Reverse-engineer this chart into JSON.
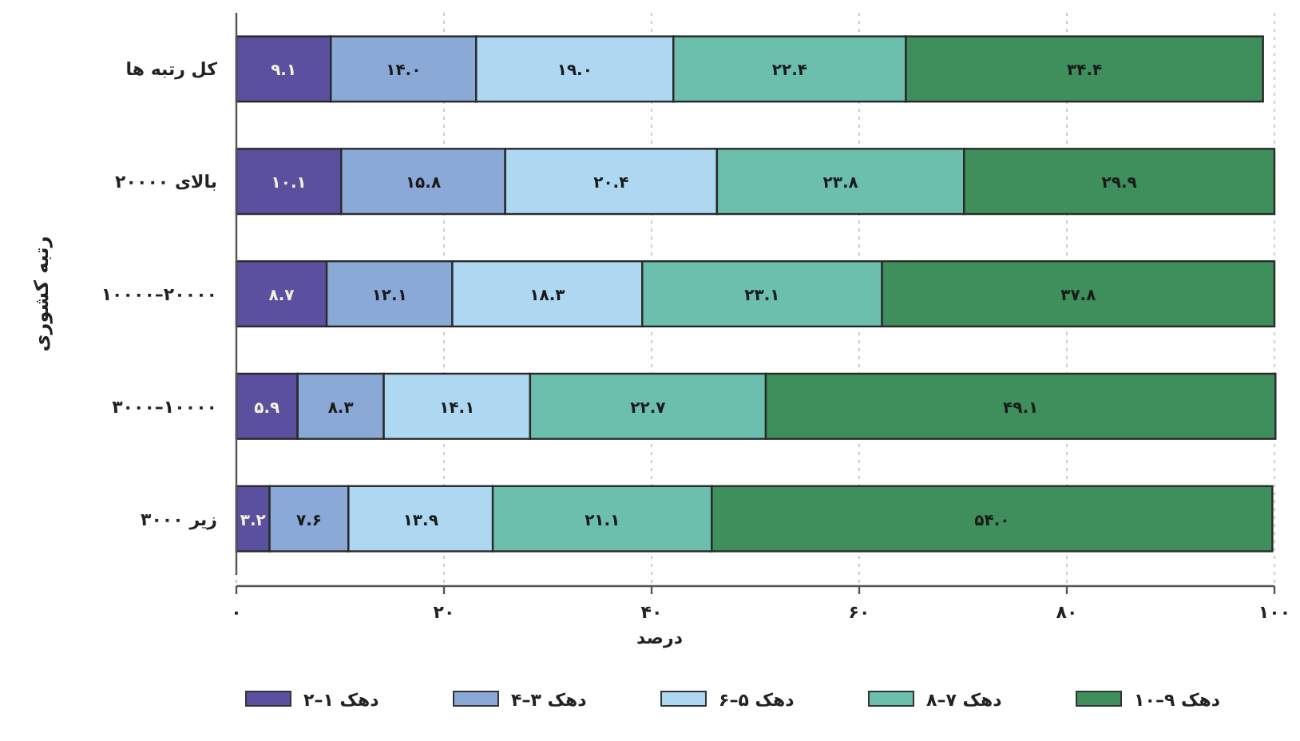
{
  "chart_data": {
    "type": "bar",
    "orientation": "horizontal",
    "stacked": true,
    "xlabel": "درصد",
    "ylabel": "رتبه کشوری",
    "categories": [
      "کل رتبه ها",
      "بالای ۲۰۰۰۰",
      "۲۰۰۰۰–۱۰۰۰۰",
      "۱۰۰۰۰–۳۰۰۰",
      "زیر ۳۰۰۰"
    ],
    "series": [
      {
        "name": "دهک ۱–۲",
        "color": "#5b4fa0",
        "values": [
          9.1,
          10.1,
          8.7,
          5.9,
          3.2
        ],
        "value_labels": [
          "۹.۱",
          "۱۰.۱",
          "۸.۷",
          "۵.۹",
          "۳.۲"
        ]
      },
      {
        "name": "دهک ۳–۴",
        "color": "#8aa9d6",
        "values": [
          14.0,
          15.8,
          12.1,
          8.3,
          7.6
        ],
        "value_labels": [
          "۱۴.۰",
          "۱۵.۸",
          "۱۲.۱",
          "۸.۳",
          "۷.۶"
        ]
      },
      {
        "name": "دهک ۵–۶",
        "color": "#aed8f2",
        "values": [
          19.0,
          20.4,
          18.3,
          14.1,
          13.9
        ],
        "value_labels": [
          "۱۹.۰",
          "۲۰.۴",
          "۱۸.۳",
          "۱۴.۱",
          "۱۳.۹"
        ]
      },
      {
        "name": "دهک ۷–۸",
        "color": "#6cbfad",
        "values": [
          22.4,
          23.8,
          23.1,
          22.7,
          21.1
        ],
        "value_labels": [
          "۲۲.۴",
          "۲۳.۸",
          "۲۳.۱",
          "۲۲.۷",
          "۲۱.۱"
        ]
      },
      {
        "name": "دهک ۹–۱۰",
        "color": "#3e8f5c",
        "values": [
          34.4,
          29.9,
          37.8,
          49.1,
          54.0
        ],
        "value_labels": [
          "۳۴.۴",
          "۲۹.۹",
          "۳۷.۸",
          "۴۹.۱",
          "۵۴.۰"
        ]
      }
    ],
    "xlim": [
      0,
      100
    ],
    "xticks": [
      {
        "value": 0,
        "label": "۰"
      },
      {
        "value": 20,
        "label": "۲۰"
      },
      {
        "value": 40,
        "label": "۴۰"
      },
      {
        "value": 60,
        "label": "۶۰"
      },
      {
        "value": 80,
        "label": "۸۰"
      },
      {
        "value": 100,
        "label": "۱۰۰"
      }
    ],
    "grid": "x",
    "legend": "bottom"
  }
}
